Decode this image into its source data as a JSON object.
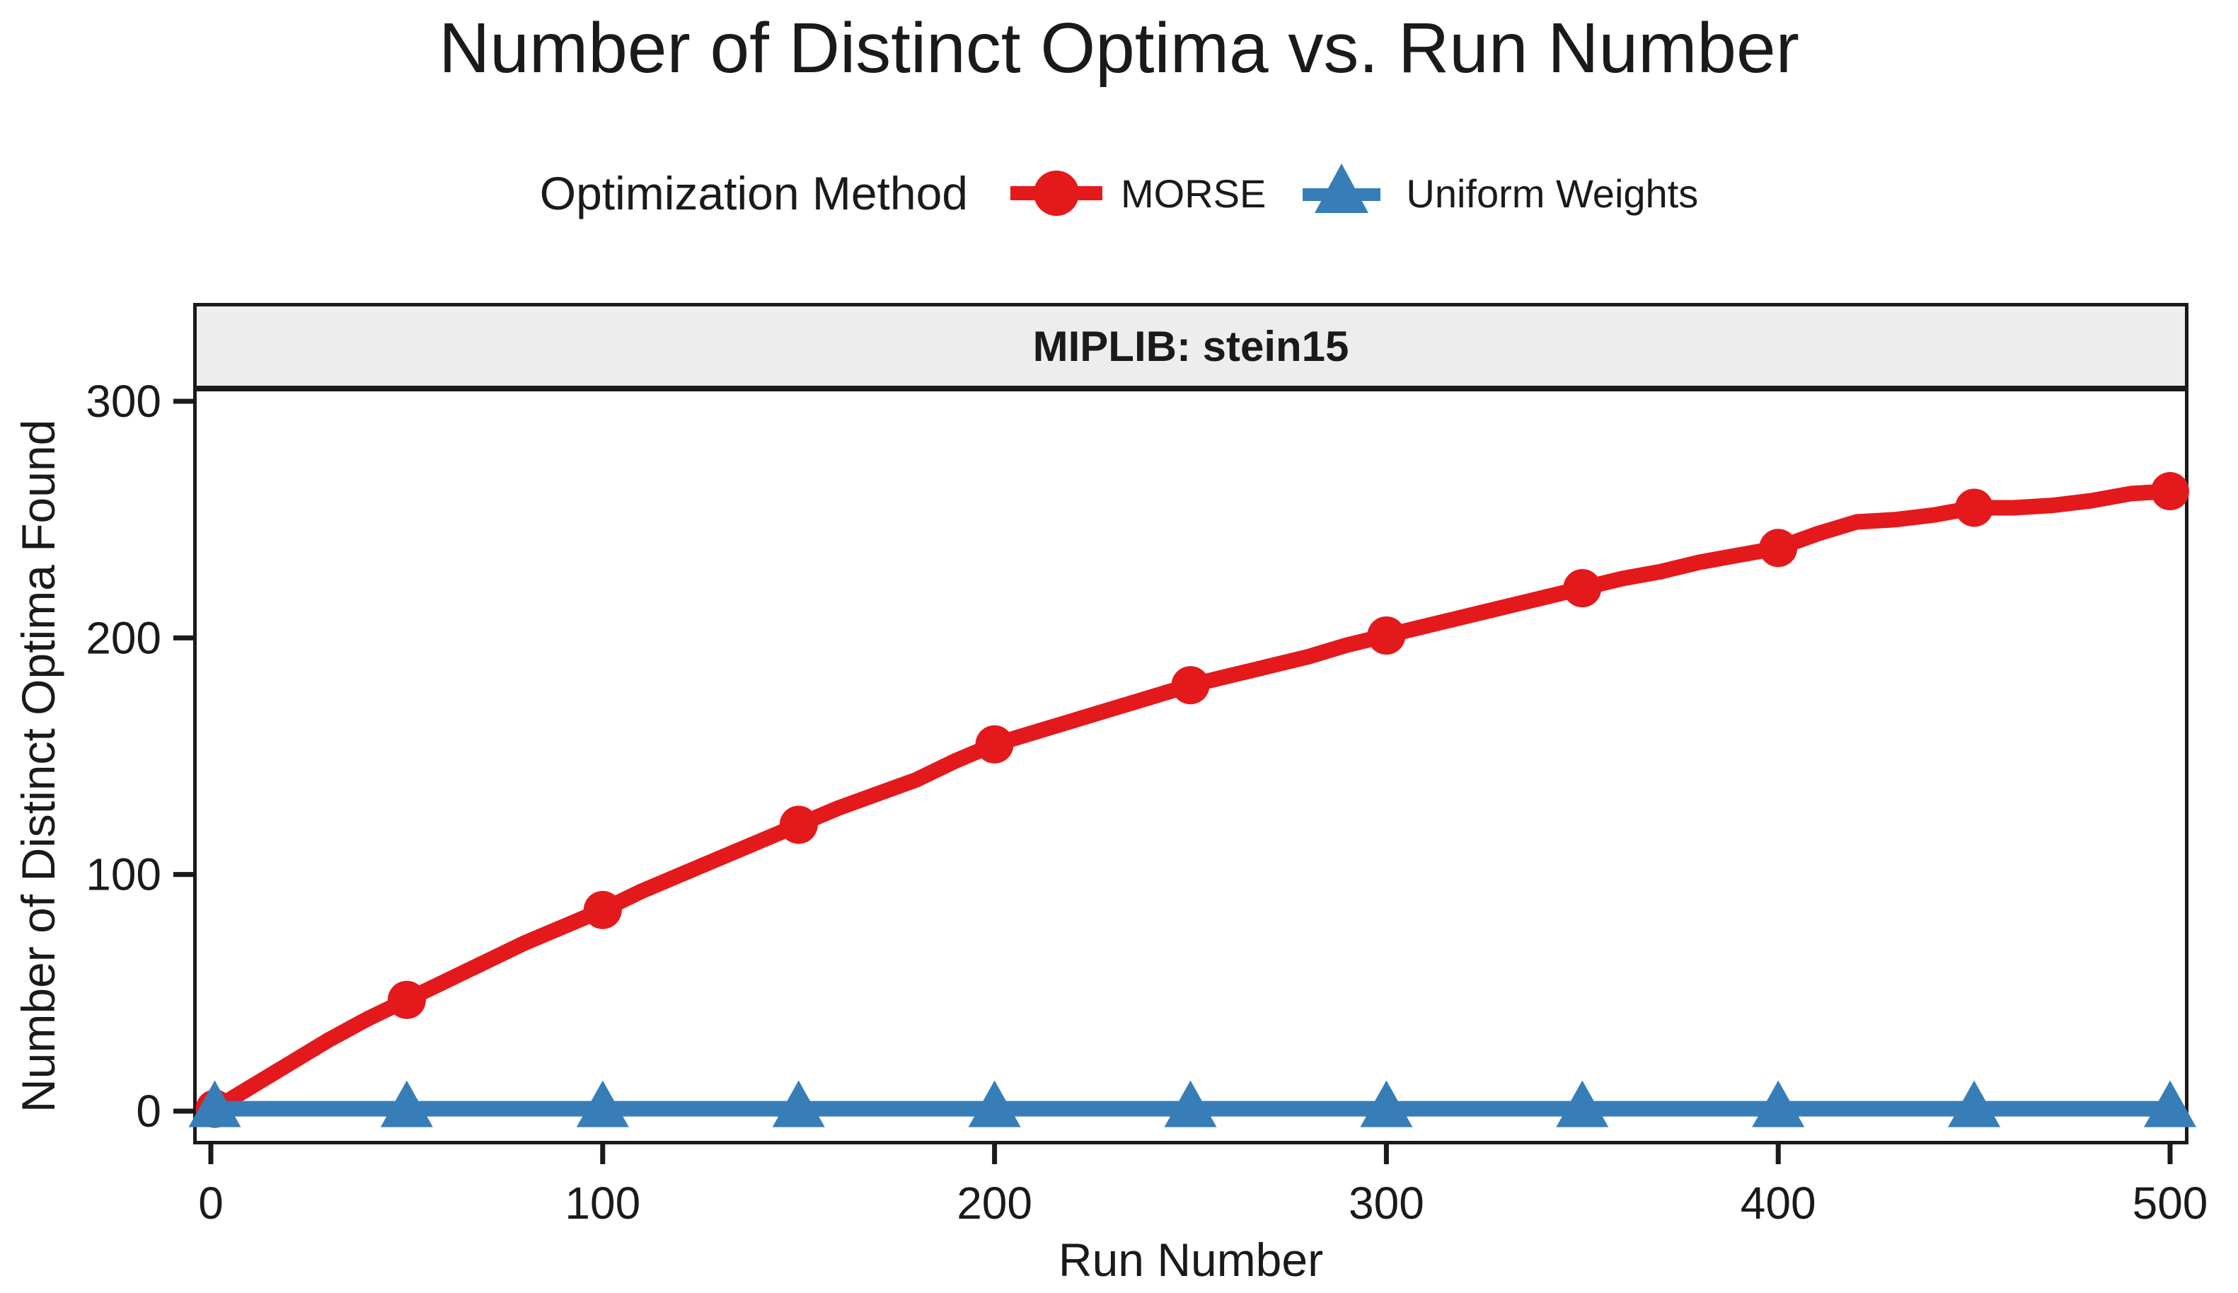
{
  "title": "Number of Distinct Optima vs. Run Number",
  "legend": {
    "title": "Optimization Method",
    "items": [
      {
        "label": "MORSE",
        "icon": "circle-marker-icon",
        "color": "#e4191c"
      },
      {
        "label": "Uniform Weights",
        "icon": "triangle-marker-icon",
        "color": "#377eb8"
      }
    ]
  },
  "facet": {
    "label": "MIPLIB: stein15",
    "background": "#ededed"
  },
  "axes": {
    "x": {
      "title": "Run Number",
      "ticks": [
        0,
        100,
        200,
        300,
        400,
        500
      ]
    },
    "y": {
      "title": "Number of Distinct Optima Found",
      "ticks": [
        0,
        100,
        200,
        300
      ]
    }
  },
  "chart_data": {
    "type": "line",
    "title": "Number of Distinct Optima vs. Run Number",
    "xlabel": "Run Number",
    "ylabel": "Number of Distinct Optima Found",
    "facet_label": "MIPLIB: stein15",
    "xlim": [
      0,
      500
    ],
    "ylim": [
      0,
      300
    ],
    "x_ticks": [
      0,
      100,
      200,
      300,
      400,
      500
    ],
    "y_ticks": [
      0,
      100,
      200,
      300
    ],
    "legend_position": "top",
    "grid": false,
    "series": [
      {
        "name": "MORSE",
        "color": "#e4191c",
        "marker": "circle",
        "marker_x": [
          1,
          50,
          100,
          150,
          200,
          250,
          300,
          350,
          400,
          450,
          500
        ],
        "marker_y": [
          1,
          47,
          85,
          121,
          155,
          180,
          201,
          221,
          238,
          255,
          262
        ],
        "line_x": [
          1,
          10,
          20,
          30,
          40,
          50,
          60,
          70,
          80,
          90,
          100,
          110,
          120,
          130,
          140,
          150,
          160,
          170,
          180,
          190,
          200,
          210,
          220,
          230,
          240,
          250,
          260,
          270,
          280,
          290,
          300,
          310,
          320,
          330,
          340,
          350,
          360,
          370,
          380,
          390,
          400,
          410,
          420,
          430,
          440,
          450,
          460,
          470,
          480,
          490,
          500
        ],
        "line_y": [
          1,
          10,
          20,
          30,
          39,
          47,
          55,
          63,
          71,
          78,
          85,
          93,
          100,
          107,
          114,
          121,
          128,
          134,
          140,
          148,
          155,
          160,
          165,
          170,
          175,
          180,
          184,
          188,
          192,
          197,
          201,
          205,
          209,
          213,
          217,
          221,
          225,
          228,
          232,
          235,
          238,
          244,
          249,
          250,
          252,
          255,
          255,
          256,
          258,
          261,
          262
        ]
      },
      {
        "name": "Uniform Weights",
        "color": "#377eb8",
        "marker": "triangle",
        "marker_x": [
          1,
          50,
          100,
          150,
          200,
          250,
          300,
          350,
          400,
          450,
          500
        ],
        "marker_y": [
          1,
          1,
          1,
          1,
          1,
          1,
          1,
          1,
          1,
          1,
          1
        ],
        "line_x": [
          1,
          500
        ],
        "line_y": [
          1,
          1
        ]
      }
    ]
  }
}
